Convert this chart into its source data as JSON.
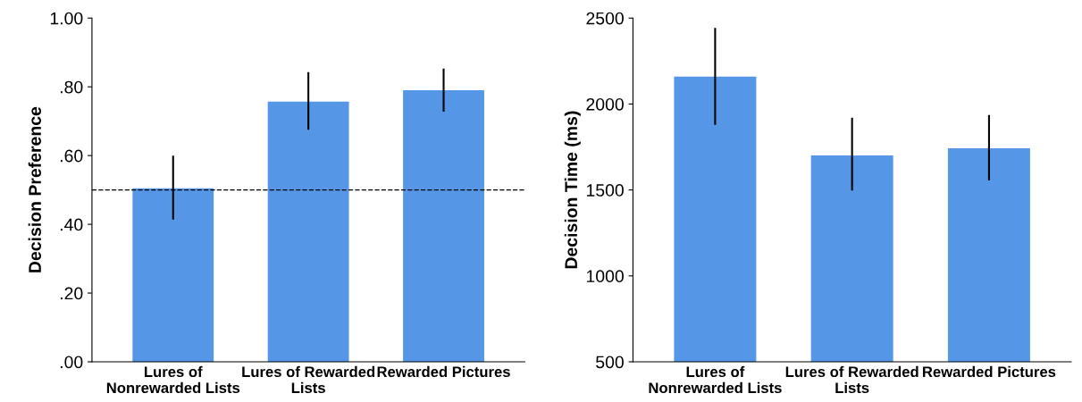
{
  "chart_data": [
    {
      "type": "bar",
      "ylabel": "Decision Preference",
      "categories": [
        "Lures of\nNonrewarded Lists",
        "Lures of Rewarded\nLists",
        "Rewarded Pictures"
      ],
      "values": [
        0.505,
        0.757,
        0.79
      ],
      "errors": [
        [
          0.414,
          0.6
        ],
        [
          0.675,
          0.843
        ],
        [
          0.728,
          0.853
        ]
      ],
      "color": "#5596e6",
      "ylim": [
        0,
        1
      ],
      "yticks": [
        {
          "value": 0,
          "label": ".00"
        },
        {
          "value": 0.2,
          "label": ".20"
        },
        {
          "value": 0.4,
          "label": ".40"
        },
        {
          "value": 0.6,
          "label": ".60"
        },
        {
          "value": 0.8,
          "label": ".80"
        },
        {
          "value": 1.0,
          "label": "1.00"
        }
      ],
      "ref_lines": [
        {
          "axis": "y",
          "value": 0.5,
          "color": "#000000",
          "line_style": "dashed"
        }
      ],
      "grid": false,
      "legend": false
    },
    {
      "type": "bar",
      "ylabel": "Decision Time (ms)",
      "categories": [
        "Lures of\nNonrewarded Lists",
        "Lures of Rewarded\nLists",
        "Rewarded Pictures"
      ],
      "values": [
        2160,
        1701,
        1743
      ],
      "errors": [
        [
          1879,
          2443
        ],
        [
          1497,
          1920
        ],
        [
          1555,
          1936
        ]
      ],
      "color": "#5596e6",
      "ylim": [
        500,
        2500
      ],
      "yticks": [
        500,
        1000,
        1500,
        2000,
        2500
      ],
      "grid": false,
      "legend": false
    }
  ]
}
